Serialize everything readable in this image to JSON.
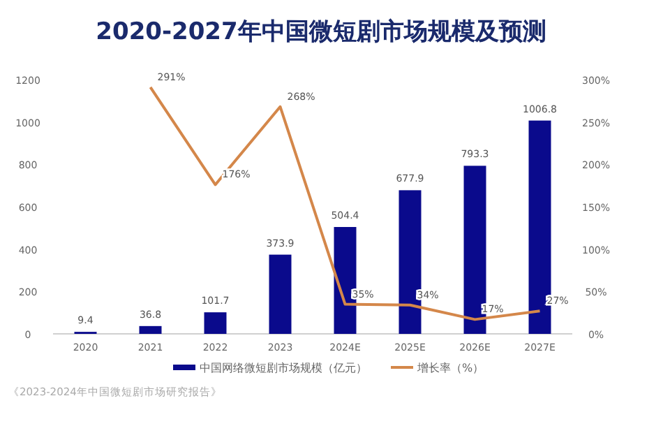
{
  "chart_data": {
    "type": "bar",
    "title": "2020-2027年中国微短剧市场规模及预测",
    "categories": [
      "2020",
      "2021",
      "2022",
      "2023",
      "2024E",
      "2025E",
      "2026E",
      "2027E"
    ],
    "series": [
      {
        "name": "中国网络微短剧市场规模（亿元）",
        "color": "#0a0a8c",
        "values": [
          9.4,
          36.8,
          101.7,
          373.9,
          504.4,
          677.9,
          793.3,
          1006.8
        ],
        "value_labels": [
          "9.4",
          "36.8",
          "101.7",
          "373.9",
          "504.4",
          "677.9",
          "793.3",
          "1006.8"
        ]
      },
      {
        "name": "增长率（%）",
        "type": "line",
        "axis": "y2",
        "color": "#d4874a",
        "values": [
          null,
          291,
          176,
          268,
          35,
          34,
          17,
          27
        ],
        "value_labels": [
          null,
          "291%",
          "176%",
          "268%",
          "35%",
          "34%",
          "17%",
          "27%"
        ]
      }
    ],
    "ylim": [
      0,
      1200
    ],
    "yticks": [
      0,
      200,
      400,
      600,
      800,
      1000,
      1200
    ],
    "y2lim": [
      0,
      300
    ],
    "y2ticks": [
      {
        "value": 0,
        "label": "0%"
      },
      {
        "value": 50,
        "label": "50%"
      },
      {
        "value": 100,
        "label": "100%"
      },
      {
        "value": 150,
        "label": "150%"
      },
      {
        "value": 200,
        "label": "200%"
      },
      {
        "value": 250,
        "label": "250%"
      },
      {
        "value": 300,
        "label": "300%"
      }
    ],
    "legend": "bottom",
    "grid": false,
    "annotations": [
      "《2023-2024年中国微短剧市场研究报告》"
    ]
  }
}
